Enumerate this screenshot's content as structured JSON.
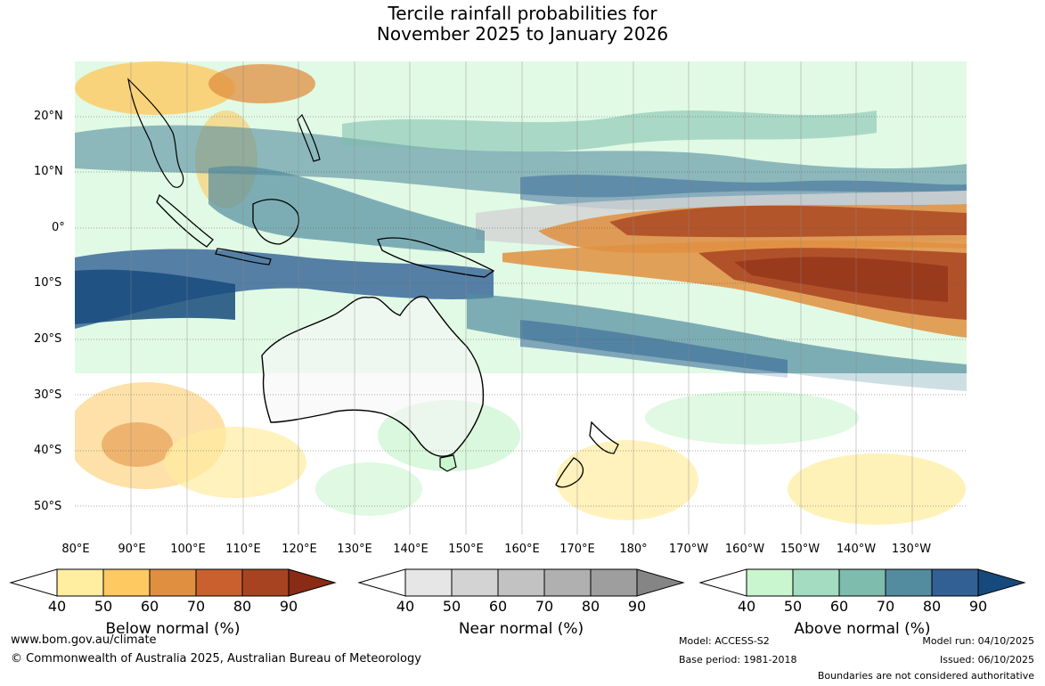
{
  "title": {
    "line1": "Tercile rainfall probabilities for",
    "line2": "November 2025 to January 2026"
  },
  "map": {
    "region": "Indo-Pacific and Australia",
    "lat_labels": [
      "20°N",
      "10°N",
      "0°",
      "10°S",
      "20°S",
      "30°S",
      "40°S",
      "50°S"
    ],
    "lon_labels": [
      "80°E",
      "90°E",
      "100°E",
      "110°E",
      "120°E",
      "130°E",
      "140°E",
      "150°E",
      "160°E",
      "170°E",
      "180°",
      "170°W",
      "160°W",
      "150°W",
      "140°W",
      "130°W"
    ]
  },
  "legend": {
    "below": {
      "label": "Below normal (%)",
      "ticks": [
        "40",
        "50",
        "60",
        "70",
        "80",
        "90"
      ],
      "colors": [
        "#ffeda0",
        "#fec960",
        "#e08f40",
        "#c9602e",
        "#a84321",
        "#8a2b15"
      ]
    },
    "near": {
      "label": "Near normal (%)",
      "ticks": [
        "40",
        "50",
        "60",
        "70",
        "80",
        "90"
      ],
      "colors": [
        "#e6e6e6",
        "#d3d3d3",
        "#c2c2c2",
        "#b0b0b0",
        "#9e9e9e",
        "#858585"
      ]
    },
    "above": {
      "label": "Above normal (%)",
      "ticks": [
        "40",
        "50",
        "60",
        "70",
        "80",
        "90"
      ],
      "colors": [
        "#c9f5cf",
        "#a3dcc0",
        "#7ebcad",
        "#538c9f",
        "#326095",
        "#174a7c"
      ]
    }
  },
  "footer": {
    "url": "www.bom.gov.au/climate",
    "copyright": "© Commonwealth of Australia 2025, Australian Bureau of Meteorology",
    "model": "Model: ACCESS-S2",
    "base_period": "Base period: 1981-2018",
    "model_run": "Model run: 04/10/2025",
    "issued": "Issued: 06/10/2025",
    "disclaimer": "Boundaries are not considered authoritative"
  }
}
